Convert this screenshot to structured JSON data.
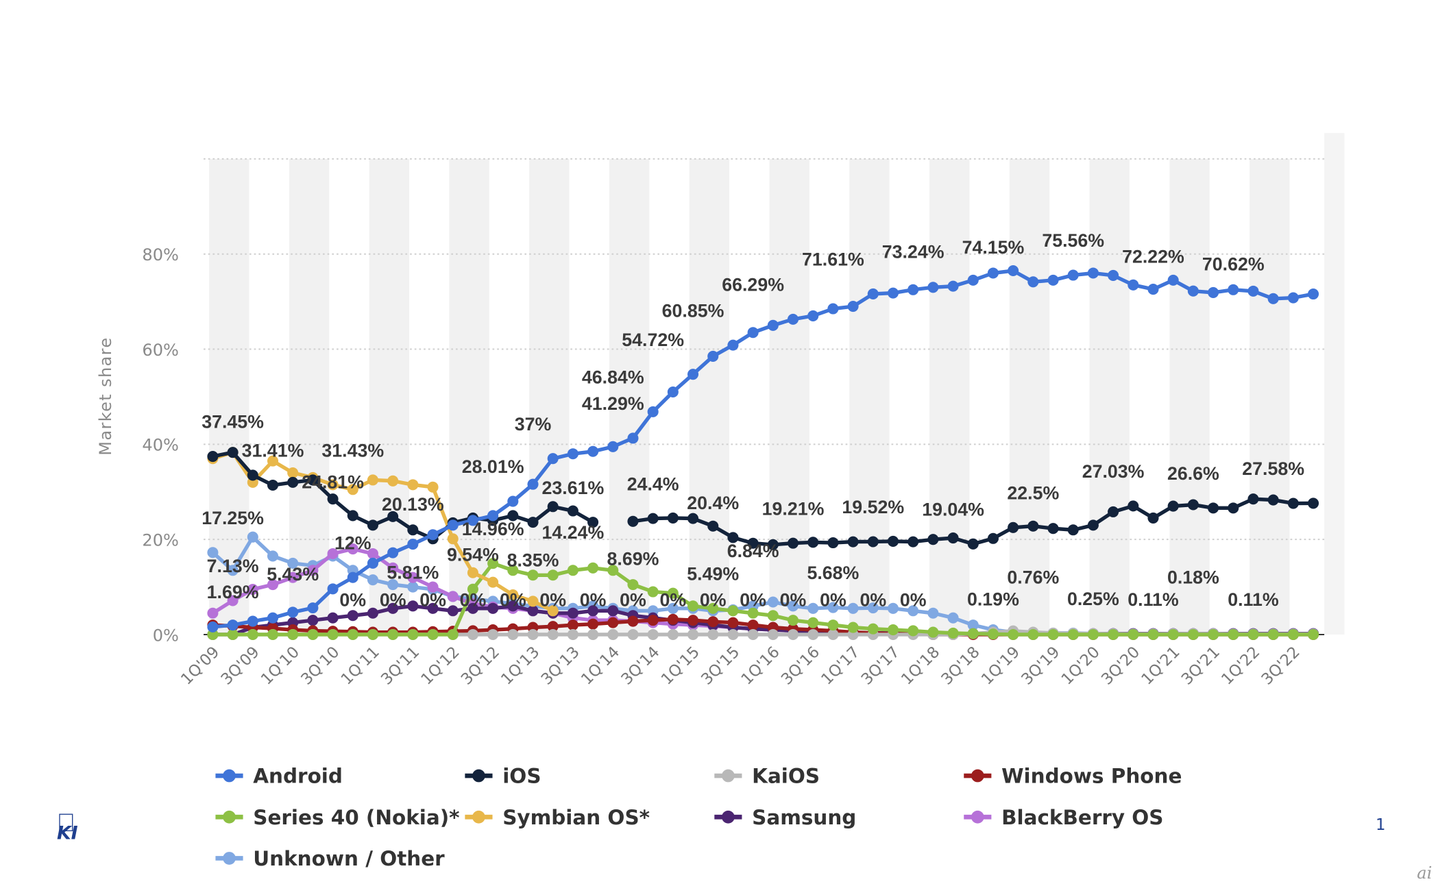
{
  "chart_data": {
    "type": "line",
    "title": "",
    "xlabel": "",
    "ylabel": "Market share",
    "ylim": [
      0,
      100
    ],
    "yticks": [
      "0%",
      "20%",
      "40%",
      "60%",
      "80%"
    ],
    "ytick_values": [
      0,
      20,
      40,
      60,
      80
    ],
    "grid": true,
    "legend_placement": "bottom",
    "x": [
      "1Q'09",
      "2Q'09",
      "3Q'09",
      "4Q'09",
      "1Q'10",
      "2Q'10",
      "3Q'10",
      "4Q'10",
      "1Q'11",
      "2Q'11",
      "3Q'11",
      "4Q'11",
      "1Q'12",
      "2Q'12",
      "3Q'12",
      "4Q'12",
      "1Q'13",
      "2Q'13",
      "3Q'13",
      "4Q'13",
      "1Q'14",
      "2Q'14",
      "3Q'14",
      "4Q'14",
      "1Q'15",
      "2Q'15",
      "3Q'15",
      "4Q'15",
      "1Q'16",
      "2Q'16",
      "3Q'16",
      "4Q'16",
      "1Q'17",
      "2Q'17",
      "3Q'17",
      "4Q'17",
      "1Q'18",
      "2Q'18",
      "3Q'18",
      "4Q'18",
      "1Q'19",
      "2Q'19",
      "3Q'19",
      "4Q'19",
      "1Q'20",
      "2Q'20",
      "3Q'20",
      "4Q'20",
      "1Q'21",
      "2Q'21",
      "3Q'21",
      "4Q'21",
      "1Q'22",
      "2Q'22",
      "3Q'22",
      "4Q'22"
    ],
    "xtick_labels": [
      "1Q'09",
      "3Q'09",
      "1Q'10",
      "3Q'10",
      "1Q'11",
      "3Q'11",
      "1Q'12",
      "3Q'12",
      "1Q'13",
      "3Q'13",
      "1Q'14",
      "3Q'14",
      "1Q'15",
      "3Q'15",
      "1Q'16",
      "3Q'16",
      "1Q'17",
      "3Q'17",
      "1Q'18",
      "3Q'18",
      "1Q'19",
      "3Q'19",
      "1Q'20",
      "3Q'20",
      "1Q'21",
      "3Q'21",
      "1Q'22",
      "3Q'22"
    ],
    "series": [
      {
        "name": "Unknown / Other",
        "color": "#80a8e2",
        "values": [
          17.25,
          13.5,
          20.5,
          16.5,
          15,
          14.5,
          16.5,
          13.5,
          11.5,
          10.5,
          10,
          9.5,
          8,
          7.5,
          7,
          6.5,
          6,
          5.5,
          5.5,
          6,
          5.5,
          5,
          5,
          5.5,
          5.5,
          5,
          5.2,
          6,
          6.84,
          6,
          5.5,
          5.68,
          5.5,
          5.6,
          5.5,
          5,
          4.5,
          3.5,
          2,
          1,
          0.5,
          0.4,
          0.3,
          0.3,
          0.2,
          0.2,
          0.2,
          0.2,
          0.2,
          0.2,
          0.2,
          0.2,
          0.2,
          0.2,
          0.2,
          0.2
        ]
      },
      {
        "name": "BlackBerry OS",
        "color": "#b671d8",
        "values": [
          4.5,
          7.13,
          9.5,
          10.5,
          12,
          13.5,
          17,
          18,
          17,
          14,
          12,
          10,
          8,
          6.5,
          5.8,
          5.5,
          5,
          4.5,
          3.5,
          3,
          3,
          2.8,
          2.5,
          2.2,
          2,
          1.8,
          1.5,
          1.2,
          1,
          0.8,
          0.6,
          0.5,
          0.4,
          0.3,
          0.3,
          0.2,
          0.2,
          0.2,
          0.1,
          0.1,
          0.1,
          0.1,
          0.1,
          0.1,
          0.1,
          0.1,
          0.1,
          0.1,
          0.1,
          0.1,
          0.1,
          0.1,
          0.1,
          0.1,
          0.1,
          0.1
        ]
      },
      {
        "name": "Samsung",
        "color": "#4b2571",
        "values": [
          0,
          0,
          1.5,
          2,
          2.5,
          3,
          3.5,
          4,
          4.5,
          5.5,
          6,
          5.5,
          5,
          5.5,
          5.5,
          6,
          5,
          4.5,
          4.5,
          5,
          5,
          4,
          3.5,
          3,
          2.5,
          2,
          1.5,
          1.2,
          1,
          0.8,
          0.6,
          0.5,
          0.4,
          0.3,
          0.3,
          0.2,
          0.2,
          0.2,
          0.2,
          0.2,
          0.2,
          0.2,
          0.2,
          0.2,
          0.2,
          0.2,
          0.2,
          0.2,
          0.2,
          0.2,
          0.2,
          0.2,
          0.2,
          0.2,
          0.2,
          0.2
        ]
      },
      {
        "name": "Windows Phone",
        "color": "#9c1e1e",
        "values": [
          2,
          1.8,
          1.5,
          1.3,
          1,
          0.8,
          0.7,
          0.6,
          0.5,
          0.5,
          0.5,
          0.6,
          0.7,
          0.8,
          1,
          1.2,
          1.5,
          1.7,
          2,
          2.2,
          2.5,
          2.8,
          3,
          3.2,
          3,
          2.7,
          2.5,
          2,
          1.5,
          1.2,
          1,
          0.8,
          0.5,
          0.3,
          0.2,
          0.1,
          0,
          0,
          0,
          0,
          0,
          0,
          0,
          0,
          0,
          0,
          0,
          0,
          0,
          0,
          0,
          0,
          0,
          0,
          0,
          0
        ]
      },
      {
        "name": "KaiOS",
        "color": "#b8b8b8",
        "values": [
          0,
          0,
          0,
          0,
          0,
          0,
          0,
          0,
          0,
          0,
          0,
          0,
          0,
          0,
          0,
          0,
          0,
          0,
          0,
          0,
          0,
          0,
          0,
          0,
          0,
          0,
          0,
          0,
          0,
          0,
          0,
          0,
          0,
          0,
          0,
          0,
          0,
          0,
          0.19,
          0.5,
          0.76,
          0.5,
          0.3,
          0.25,
          0.2,
          0.15,
          0.11,
          0.12,
          0.15,
          0.18,
          0.15,
          0.11,
          0.1,
          0.1,
          0.1,
          0.1
        ]
      },
      {
        "name": "Series 40 (Nokia)*",
        "color": "#8dc044",
        "values": [
          0,
          0,
          0,
          0,
          0,
          0,
          0,
          0,
          0,
          0,
          0,
          0,
          0,
          9.54,
          14.96,
          13.5,
          12.5,
          12.5,
          13.5,
          14,
          13.5,
          10.5,
          9,
          8.69,
          6,
          5.5,
          5,
          4.5,
          4,
          3,
          2.5,
          2,
          1.5,
          1.2,
          1,
          0.8,
          0.5,
          0.3,
          0.2,
          0.1,
          0,
          0,
          0,
          0,
          0,
          0,
          0,
          0,
          0,
          0,
          0,
          0,
          0,
          0,
          0,
          0
        ]
      },
      {
        "name": "Symbian OS*",
        "color": "#e8b74a",
        "values": [
          37,
          38.3,
          32,
          36.5,
          34,
          33,
          31.5,
          30.5,
          32.5,
          32.3,
          31.5,
          31,
          20.13,
          13,
          11,
          8.35,
          7,
          5,
          null,
          null,
          null,
          null,
          null,
          null,
          null,
          null,
          null,
          null,
          null,
          null,
          null,
          null,
          null,
          null,
          null,
          null,
          null,
          null,
          null,
          null,
          null,
          null,
          null,
          null,
          null,
          null,
          null,
          null,
          null,
          null,
          null,
          null,
          null,
          null,
          null,
          null
        ]
      },
      {
        "name": "iOS",
        "color": "#13233b",
        "values": [
          37.45,
          38.3,
          33.5,
          31.41,
          32,
          32.5,
          28.5,
          25,
          23,
          24.8,
          22,
          20.13,
          23.5,
          24.5,
          24,
          25,
          23.61,
          26.9,
          26,
          23.61,
          null,
          23.8,
          24.4,
          24.5,
          24.4,
          22.8,
          20.4,
          19.2,
          18.9,
          19.21,
          19.4,
          19.3,
          19.5,
          19.52,
          19.6,
          19.5,
          20,
          20.3,
          19.04,
          20.2,
          22.5,
          22.8,
          22.3,
          22,
          23,
          25.8,
          27.03,
          24.5,
          27,
          27.3,
          26.6,
          26.6,
          28.5,
          28.3,
          27.58,
          27.6
        ]
      },
      {
        "name": "Android",
        "color": "#3f74d8",
        "values": [
          1.6,
          2,
          2.8,
          3.5,
          4.7,
          5.6,
          9.6,
          12,
          15,
          17.2,
          19,
          21,
          23,
          24,
          25,
          28.01,
          31.6,
          37,
          38,
          38.5,
          39.5,
          41.29,
          46.84,
          51,
          54.72,
          58.5,
          60.85,
          63.5,
          65,
          66.29,
          67,
          68.5,
          69,
          71.61,
          71.8,
          72.5,
          73,
          73.24,
          74.5,
          76,
          76.5,
          74.15,
          74.5,
          75.56,
          76,
          75.5,
          73.5,
          72.6,
          74.5,
          72.22,
          71.9,
          72.5,
          72.2,
          70.62,
          70.8,
          71.6
        ]
      }
    ],
    "data_labels": [
      {
        "i": 1,
        "text": "37.45%"
      },
      {
        "i": 3,
        "text": "31.41%"
      },
      {
        "i": 7,
        "text": "31.43%"
      },
      {
        "i": 6,
        "text": "24.81%"
      },
      {
        "i": 10,
        "text": "20.13%"
      },
      {
        "i": 1,
        "text": "17.25%"
      },
      {
        "i": 1,
        "text": "7.13%"
      },
      {
        "i": 4,
        "text": "5.43%"
      },
      {
        "i": 7,
        "text": "12%"
      },
      {
        "i": 10,
        "text": "5.81%"
      },
      {
        "i": 1,
        "text": "1.69%"
      },
      {
        "i": 14,
        "text": "28.01%"
      },
      {
        "i": 14,
        "text": "14.96%"
      },
      {
        "i": 13,
        "text": "9.54%"
      },
      {
        "i": 16,
        "text": "8.35%"
      },
      {
        "i": 16,
        "text": "37%"
      },
      {
        "i": 18,
        "text": "23.61%"
      },
      {
        "i": 18,
        "text": "14.24%"
      },
      {
        "i": 20,
        "text": "41.29%"
      },
      {
        "i": 20,
        "text": "46.84%"
      },
      {
        "i": 21,
        "text": "8.69%"
      },
      {
        "i": 22,
        "text": "24.4%"
      },
      {
        "i": 22,
        "text": "54.72%"
      },
      {
        "i": 24,
        "text": "60.85%"
      },
      {
        "i": 25,
        "text": "20.4%"
      },
      {
        "i": 25,
        "text": "5.49%"
      },
      {
        "i": 27,
        "text": "66.29%"
      },
      {
        "i": 27,
        "text": "6.84%"
      },
      {
        "i": 29,
        "text": "19.21%"
      },
      {
        "i": 31,
        "text": "5.68%"
      },
      {
        "i": 31,
        "text": "71.61%"
      },
      {
        "i": 33,
        "text": "19.52%"
      },
      {
        "i": 35,
        "text": "73.24%"
      },
      {
        "i": 37,
        "text": "19.04%"
      },
      {
        "i": 39,
        "text": "74.15%"
      },
      {
        "i": 41,
        "text": "22.5%"
      },
      {
        "i": 43,
        "text": "75.56%"
      },
      {
        "i": 45,
        "text": "27.03%"
      },
      {
        "i": 47,
        "text": "72.22%"
      },
      {
        "i": 49,
        "text": "26.6%"
      },
      {
        "i": 51,
        "text": "70.62%"
      },
      {
        "i": 53,
        "text": "27.58%"
      },
      {
        "i": 7,
        "text": "0%"
      },
      {
        "i": 9,
        "text": "0%"
      },
      {
        "i": 11,
        "text": "0%"
      },
      {
        "i": 13,
        "text": "0%"
      },
      {
        "i": 15,
        "text": "0%"
      },
      {
        "i": 17,
        "text": "0%"
      },
      {
        "i": 19,
        "text": "0%"
      },
      {
        "i": 21,
        "text": "0%"
      },
      {
        "i": 23,
        "text": "0%"
      },
      {
        "i": 25,
        "text": "0%"
      },
      {
        "i": 27,
        "text": "0%"
      },
      {
        "i": 29,
        "text": "0%"
      },
      {
        "i": 31,
        "text": "0%"
      },
      {
        "i": 33,
        "text": "0%"
      },
      {
        "i": 35,
        "text": "0%"
      },
      {
        "i": 39,
        "text": "0.19%"
      },
      {
        "i": 41,
        "text": "0.76%"
      },
      {
        "i": 44,
        "text": "0.25%"
      },
      {
        "i": 47,
        "text": "0.11%"
      },
      {
        "i": 49,
        "text": "0.18%"
      },
      {
        "i": 52,
        "text": "0.11%"
      }
    ],
    "legend": [
      "Android",
      "iOS",
      "KaiOS",
      "Windows Phone",
      "Series 40 (Nokia)*",
      "Symbian OS*",
      "Samsung",
      "BlackBerry OS",
      "Unknown / Other"
    ]
  },
  "footer": {
    "logo_text": "KI",
    "page_number": "1",
    "watermark": "ai"
  }
}
